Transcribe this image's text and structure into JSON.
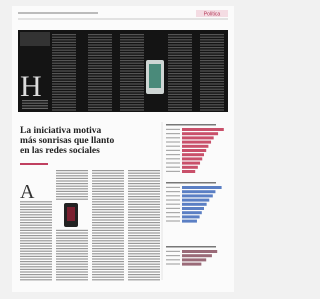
{
  "header": {
    "section": "Política"
  },
  "article": {
    "headline": [
      "La iniciativa motiva",
      "más sonrisas que llanto",
      "en las redes sociales"
    ]
  },
  "charts": [
    {
      "color": "#c9506a",
      "values": [
        95,
        82,
        72,
        66,
        60,
        55,
        50,
        46,
        41,
        36,
        30
      ]
    },
    {
      "color": "#5b7fc4",
      "values": [
        90,
        76,
        70,
        62,
        56,
        50,
        45,
        40,
        34
      ]
    },
    {
      "color": "#9a6a78",
      "values": [
        80,
        68,
        55,
        44
      ]
    }
  ]
}
